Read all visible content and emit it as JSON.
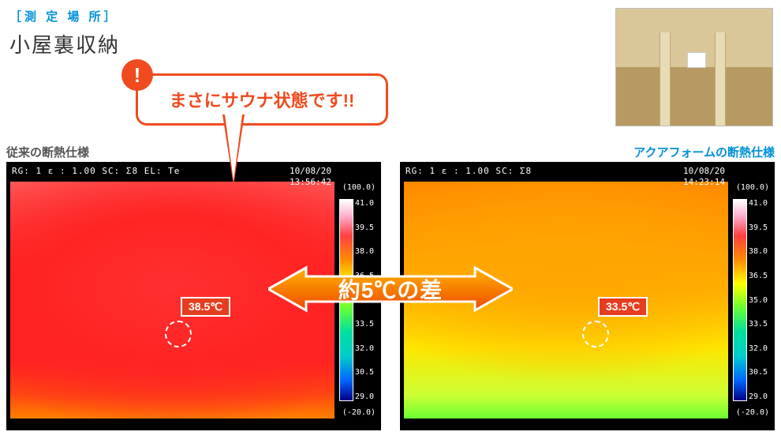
{
  "header": {
    "location_label": "［測 定 場 所］",
    "location_title": "小屋裏収納"
  },
  "callout": {
    "mark": "!",
    "text": "まさにサウナ状態です!!",
    "border_color": "#ef4b1f",
    "text_color": "#ef4b1f"
  },
  "labels": {
    "left_panel": "従来の断熱仕様",
    "right_panel": "アクアフォームの断熱仕様",
    "left_color": "#555555",
    "right_color": "#0091d6"
  },
  "diff_arrow": {
    "label": "約5℃の差",
    "gradient_from": "#ffb400",
    "gradient_to": "#ef4800",
    "stroke": "#ffffff"
  },
  "thermal_legend": {
    "top_range": "(100.0)",
    "bottom_range": "(-20.0)",
    "ticks": [
      "41.0",
      "39.5",
      "38.0",
      "36.5",
      "35.0",
      "33.5",
      "32.0",
      "30.5",
      "29.0"
    ],
    "gradient": [
      "#ffffff",
      "#ffb0d0",
      "#ff4040",
      "#ff8c00",
      "#ffff00",
      "#66ff33",
      "#00e0a0",
      "#00cccc",
      "#0066ff",
      "#000088"
    ]
  },
  "left_panel": {
    "meta_left": "RG: 1   ε : 1.00   SC: Σ8   EL: Te",
    "date": "10/08/20",
    "time": "13:56:42",
    "spot_temp": "38.5℃",
    "spot_badge_bg": "#e53d1f",
    "dominant_colors": [
      "#ff1a1a",
      "#ff3030",
      "#ff5a5a",
      "#ff8000"
    ]
  },
  "right_panel": {
    "meta_left": "RG: 1   ε : 1.00   SC: Σ8",
    "date": "10/08/20",
    "time": "14:23:14",
    "spot_temp": "33.5℃",
    "spot_badge_bg": "#e53d1f",
    "dominant_colors": [
      "#6cff33",
      "#ffe600",
      "#ffb000",
      "#ff8800"
    ]
  },
  "ref_photo": {
    "bg_top": "#d9c79a",
    "bg_bottom": "#b79a62"
  }
}
